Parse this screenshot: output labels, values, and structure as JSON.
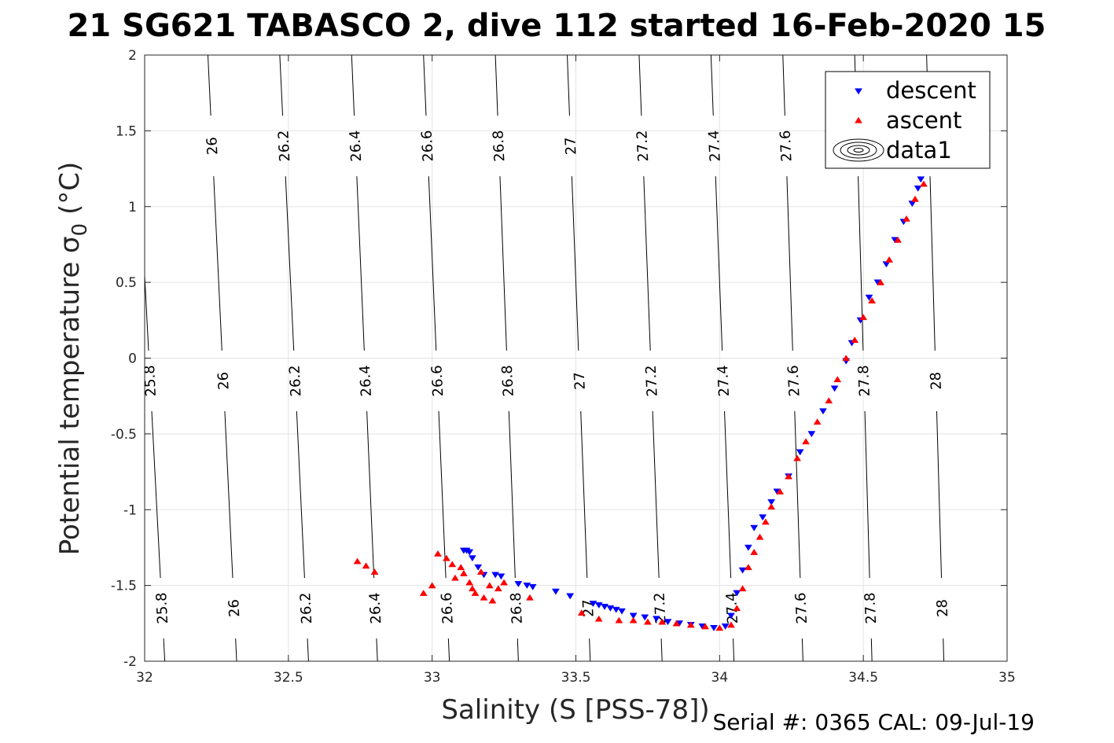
{
  "chart_data": {
    "type": "scatter",
    "title": "21 SG621 TABASCO 2, dive 112 started 16-Feb-2020 15",
    "xlabel": "Salinity (S [PSS-78])",
    "ylabel_main": "Potential temperature ",
    "ylabel_symbol": "σ",
    "ylabel_subscript": "0",
    "ylabel_unit": " (°C)",
    "xlim": [
      32,
      35
    ],
    "ylim": [
      -2,
      2
    ],
    "x_ticks": [
      32,
      32.5,
      33,
      33.5,
      34,
      34.5,
      35
    ],
    "x_tick_labels": [
      "32",
      "32.5",
      "33",
      "33.5",
      "34",
      "34.5",
      "35"
    ],
    "y_ticks": [
      -2,
      -1.5,
      -1,
      -0.5,
      0,
      0.5,
      1,
      1.5,
      2
    ],
    "y_tick_labels": [
      "-2",
      "-1.5",
      "-1",
      "-0.5",
      "0",
      "0.5",
      "1",
      "1.5",
      "2"
    ],
    "grid": true,
    "legend_position": "top-right",
    "legend": [
      {
        "label": "descent",
        "marker": "triangle-down",
        "color": "#0000ff"
      },
      {
        "label": "ascent",
        "marker": "triangle-up",
        "color": "#ff0000"
      },
      {
        "label": "data1",
        "marker": "contour-ellipses",
        "color": "#000000"
      }
    ],
    "isopycnals": [
      {
        "level": 25.8,
        "label": "25.8",
        "x_at_top": 31.96,
        "x_at_bottom": 32.07
      },
      {
        "level": 26.0,
        "label": "26",
        "x_at_top": 32.22,
        "x_at_bottom": 32.32
      },
      {
        "level": 26.2,
        "label": "26.2",
        "x_at_top": 32.47,
        "x_at_bottom": 32.57
      },
      {
        "level": 26.4,
        "label": "26.4",
        "x_at_top": 32.72,
        "x_at_bottom": 32.81
      },
      {
        "level": 26.6,
        "label": "26.6",
        "x_at_top": 32.97,
        "x_at_bottom": 33.06
      },
      {
        "level": 26.8,
        "label": "26.8",
        "x_at_top": 33.22,
        "x_at_bottom": 33.3
      },
      {
        "level": 27.0,
        "label": "27",
        "x_at_top": 33.47,
        "x_at_bottom": 33.55
      },
      {
        "level": 27.2,
        "label": "27.2",
        "x_at_top": 33.72,
        "x_at_bottom": 33.8
      },
      {
        "level": 27.4,
        "label": "27.4",
        "x_at_top": 33.97,
        "x_at_bottom": 34.05
      },
      {
        "level": 27.6,
        "label": "27.6",
        "x_at_top": 34.22,
        "x_at_bottom": 34.29
      },
      {
        "level": 27.8,
        "label": "27.8",
        "x_at_top": 34.47,
        "x_at_bottom": 34.53
      },
      {
        "level": 28.0,
        "label": "28",
        "x_at_top": 34.72,
        "x_at_bottom": 34.78
      }
    ],
    "isopycnal_label_rows_y": [
      1.4,
      -0.15,
      -1.65
    ],
    "series": [
      {
        "name": "descent",
        "color": "#0000ff",
        "marker": "triangle-down",
        "points": [
          [
            33.12,
            -1.27
          ],
          [
            33.13,
            -1.28
          ],
          [
            33.11,
            -1.27
          ],
          [
            33.14,
            -1.32
          ],
          [
            33.16,
            -1.38
          ],
          [
            33.18,
            -1.43
          ],
          [
            33.22,
            -1.43
          ],
          [
            33.24,
            -1.44
          ],
          [
            33.3,
            -1.49
          ],
          [
            33.33,
            -1.5
          ],
          [
            33.35,
            -1.51
          ],
          [
            33.43,
            -1.54
          ],
          [
            33.48,
            -1.57
          ],
          [
            33.56,
            -1.62
          ],
          [
            33.58,
            -1.63
          ],
          [
            33.6,
            -1.64
          ],
          [
            33.62,
            -1.65
          ],
          [
            33.64,
            -1.66
          ],
          [
            33.66,
            -1.67
          ],
          [
            33.7,
            -1.7
          ],
          [
            33.74,
            -1.71
          ],
          [
            33.78,
            -1.72
          ],
          [
            33.82,
            -1.74
          ],
          [
            33.86,
            -1.75
          ],
          [
            33.9,
            -1.76
          ],
          [
            33.94,
            -1.77
          ],
          [
            33.98,
            -1.78
          ],
          [
            34.02,
            -1.77
          ],
          [
            34.04,
            -1.7
          ],
          [
            34.06,
            -1.55
          ],
          [
            34.08,
            -1.4
          ],
          [
            34.1,
            -1.25
          ],
          [
            34.12,
            -1.12
          ],
          [
            34.15,
            -1.05
          ],
          [
            34.18,
            -0.95
          ],
          [
            34.2,
            -0.88
          ],
          [
            34.24,
            -0.78
          ],
          [
            34.28,
            -0.62
          ],
          [
            34.32,
            -0.5
          ],
          [
            34.36,
            -0.35
          ],
          [
            34.4,
            -0.2
          ],
          [
            34.44,
            -0.02
          ],
          [
            34.46,
            0.1
          ],
          [
            34.49,
            0.25
          ],
          [
            34.52,
            0.4
          ],
          [
            34.55,
            0.5
          ],
          [
            34.58,
            0.62
          ],
          [
            34.61,
            0.78
          ],
          [
            34.64,
            0.9
          ],
          [
            34.67,
            1.02
          ],
          [
            34.69,
            1.12
          ],
          [
            34.7,
            1.18
          ]
        ]
      },
      {
        "name": "ascent",
        "color": "#ff0000",
        "marker": "triangle-up",
        "points": [
          [
            32.74,
            -1.34
          ],
          [
            32.77,
            -1.37
          ],
          [
            32.8,
            -1.41
          ],
          [
            32.97,
            -1.55
          ],
          [
            33.0,
            -1.5
          ],
          [
            33.02,
            -1.29
          ],
          [
            33.05,
            -1.32
          ],
          [
            33.07,
            -1.36
          ],
          [
            33.08,
            -1.45
          ],
          [
            33.1,
            -1.38
          ],
          [
            33.11,
            -1.42
          ],
          [
            33.13,
            -1.48
          ],
          [
            33.14,
            -1.52
          ],
          [
            33.15,
            -1.55
          ],
          [
            33.17,
            -1.41
          ],
          [
            33.18,
            -1.58
          ],
          [
            33.2,
            -1.5
          ],
          [
            33.21,
            -1.6
          ],
          [
            33.23,
            -1.52
          ],
          [
            33.25,
            -1.48
          ],
          [
            33.34,
            -1.58
          ],
          [
            33.52,
            -1.68
          ],
          [
            33.58,
            -1.72
          ],
          [
            33.65,
            -1.73
          ],
          [
            33.7,
            -1.73
          ],
          [
            33.75,
            -1.74
          ],
          [
            33.8,
            -1.74
          ],
          [
            33.85,
            -1.75
          ],
          [
            33.9,
            -1.76
          ],
          [
            33.95,
            -1.77
          ],
          [
            34.0,
            -1.78
          ],
          [
            34.04,
            -1.76
          ],
          [
            34.06,
            -1.65
          ],
          [
            34.08,
            -1.52
          ],
          [
            34.1,
            -1.38
          ],
          [
            34.12,
            -1.28
          ],
          [
            34.14,
            -1.18
          ],
          [
            34.16,
            -1.08
          ],
          [
            34.18,
            -0.98
          ],
          [
            34.21,
            -0.88
          ],
          [
            34.24,
            -0.78
          ],
          [
            34.27,
            -0.66
          ],
          [
            34.3,
            -0.55
          ],
          [
            34.34,
            -0.42
          ],
          [
            34.38,
            -0.28
          ],
          [
            34.41,
            -0.14
          ],
          [
            34.44,
            0.0
          ],
          [
            34.47,
            0.12
          ],
          [
            34.5,
            0.27
          ],
          [
            34.53,
            0.38
          ],
          [
            34.56,
            0.5
          ],
          [
            34.59,
            0.65
          ],
          [
            34.62,
            0.78
          ],
          [
            34.65,
            0.92
          ],
          [
            34.68,
            1.05
          ],
          [
            34.71,
            1.15
          ]
        ]
      }
    ]
  },
  "footer": "Serial #: 0365  CAL: 09-Jul-19"
}
